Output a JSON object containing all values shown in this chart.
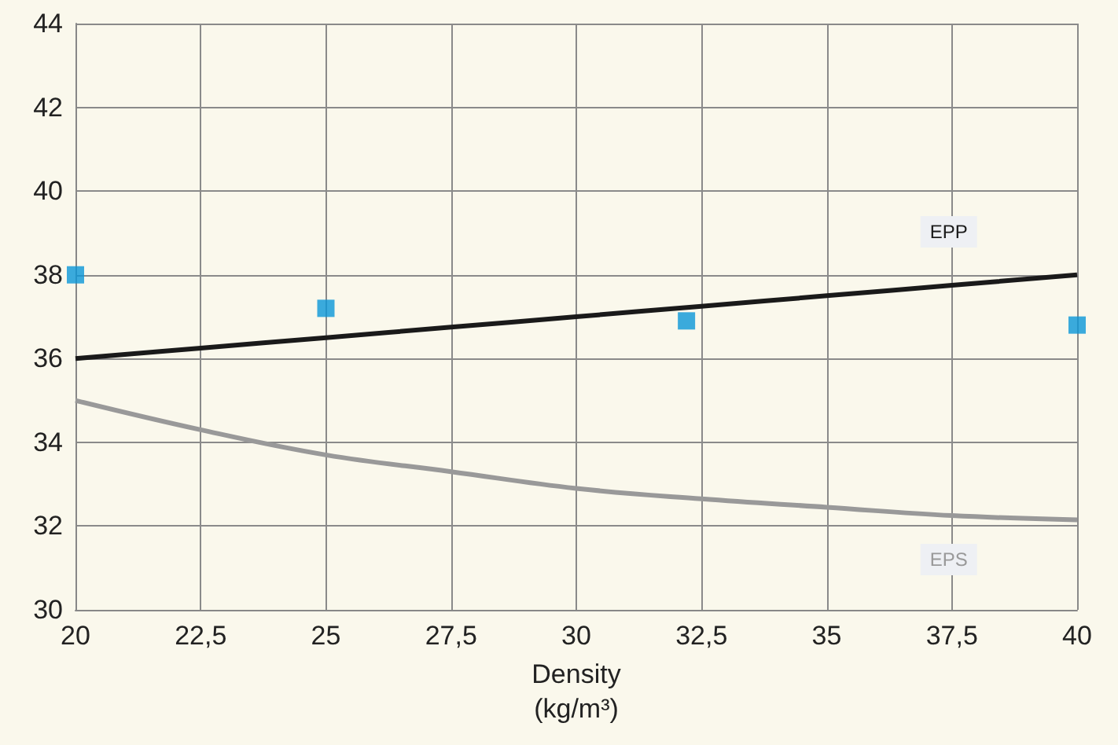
{
  "chart_data": {
    "type": "line",
    "xlabel": "Density\n(kg/m³)",
    "xlim": [
      20,
      40
    ],
    "xticks": [
      20,
      {
        "value": 22.5,
        "label": "22,5"
      },
      25,
      {
        "value": 27.5,
        "label": "27,5"
      },
      30,
      {
        "value": 32.5,
        "label": "32,5"
      },
      35,
      {
        "value": 37.5,
        "label": "37,5"
      },
      40
    ],
    "ylim": [
      30,
      44
    ],
    "yticks": [
      30,
      32,
      34,
      36,
      38,
      40,
      42,
      44
    ],
    "grid": true,
    "legend": false,
    "series": [
      {
        "type": "scatter",
        "color": "#0a96d8",
        "marker": "square",
        "x": [
          20,
          25,
          32.2,
          40
        ],
        "values": [
          38,
          37.2,
          36.9,
          36.8
        ]
      },
      {
        "name": "EPP",
        "color": "#1a1a1a",
        "marker": "none",
        "x": [
          20,
          22.5,
          25,
          27.5,
          30,
          32.5,
          35,
          37.5,
          40
        ],
        "values": [
          36,
          36.25,
          36.5,
          36.75,
          37,
          37.25,
          37.5,
          37.75,
          38
        ]
      },
      {
        "name": "EPS",
        "color": "#999999",
        "marker": "none",
        "x": [
          20,
          22.5,
          25,
          27.5,
          30,
          32.5,
          35,
          37.5,
          40
        ],
        "values": [
          35,
          34.3,
          33.7,
          33.3,
          32.9,
          32.65,
          32.45,
          32.25,
          32.15
        ]
      }
    ]
  }
}
